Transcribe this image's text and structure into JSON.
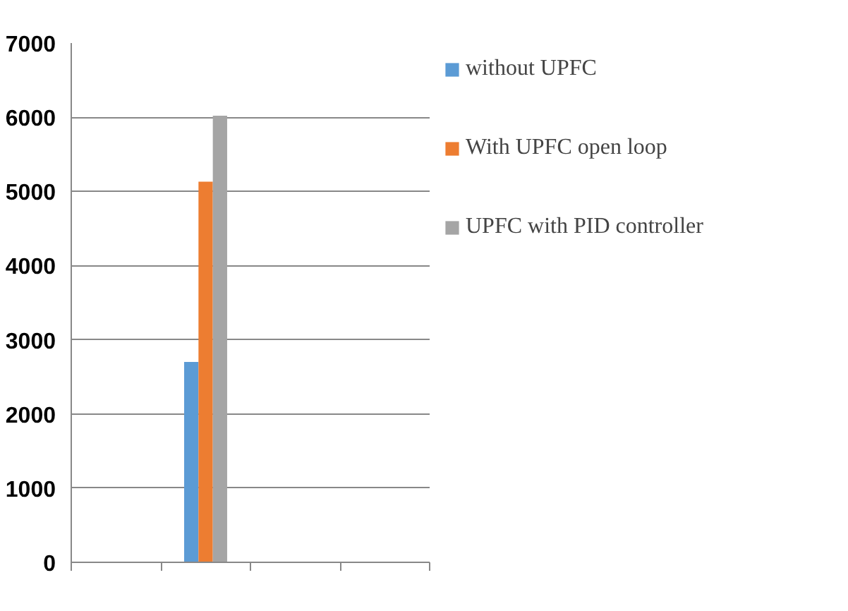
{
  "chart_data": {
    "type": "bar",
    "categories": [
      null,
      null,
      null,
      null
    ],
    "series": [
      {
        "name": "without UPFC",
        "color": "#5b9bd5",
        "values": [
          null,
          2700,
          null,
          null
        ]
      },
      {
        "name": "With UPFC open loop",
        "color": "#ed7d31",
        "values": [
          null,
          5130,
          null,
          null
        ]
      },
      {
        "name": "UPFC with PID controller",
        "color": "#a5a5a5",
        "values": [
          null,
          6020,
          null,
          null
        ]
      }
    ],
    "ylim": [
      0,
      7000
    ],
    "yticks": [
      0,
      1000,
      2000,
      3000,
      4000,
      5000,
      6000,
      7000
    ],
    "grid": "y",
    "legend": "right",
    "tick_labels": "y"
  }
}
